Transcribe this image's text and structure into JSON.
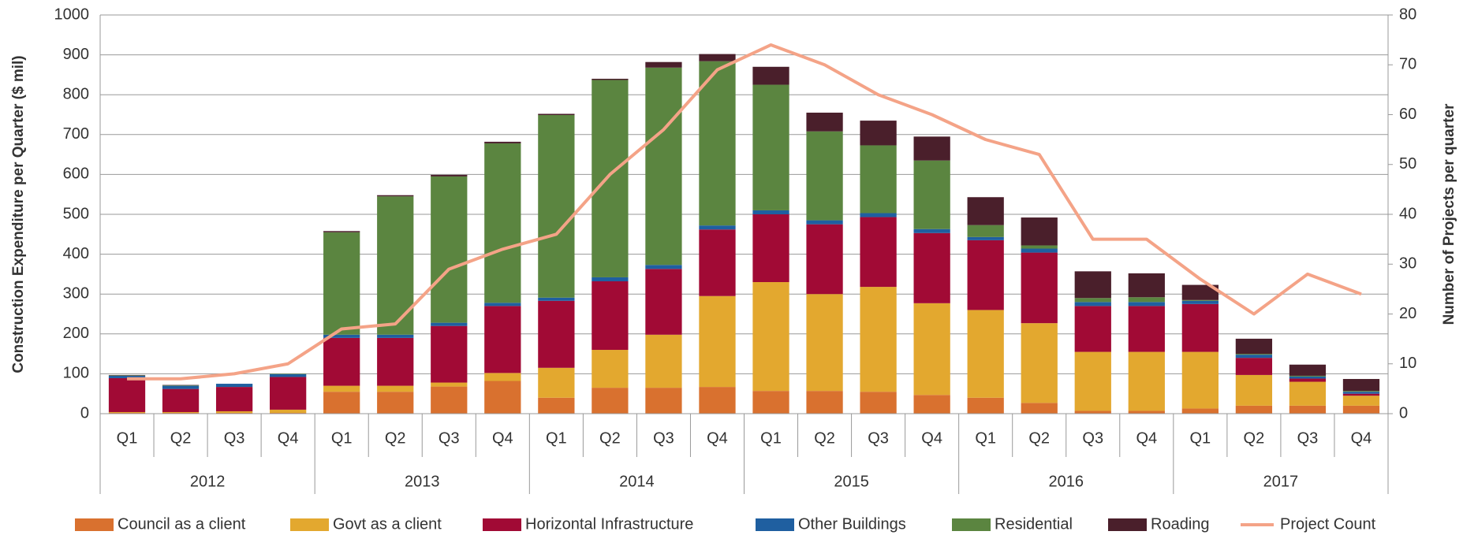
{
  "chart_data": {
    "type": "bar",
    "stacked": true,
    "categories": [
      "Q1",
      "Q2",
      "Q3",
      "Q4",
      "Q1",
      "Q2",
      "Q3",
      "Q4",
      "Q1",
      "Q2",
      "Q3",
      "Q4",
      "Q1",
      "Q2",
      "Q3",
      "Q4",
      "Q1",
      "Q2",
      "Q3",
      "Q4",
      "Q1",
      "Q2",
      "Q3",
      "Q4"
    ],
    "years": [
      "2012",
      "2013",
      "2014",
      "2015",
      "2016",
      "2017"
    ],
    "y_label": "Construction Expenditure per Quarter ($ mil)",
    "y2_label": "Number of Projects per quarter",
    "ylim": [
      0,
      1000
    ],
    "yticks": [
      0,
      100,
      200,
      300,
      400,
      500,
      600,
      700,
      800,
      900,
      1000
    ],
    "y2lim": [
      0,
      80
    ],
    "y2ticks": [
      0,
      10,
      20,
      30,
      40,
      50,
      60,
      70,
      80
    ],
    "grid": true,
    "legend": "bottom",
    "series": [
      {
        "name": "Council as a client",
        "color": "#d9712f",
        "values": [
          2,
          2,
          2,
          2,
          55,
          55,
          68,
          82,
          40,
          65,
          65,
          67,
          57,
          57,
          55,
          47,
          40,
          27,
          7,
          7,
          13,
          20,
          20,
          20
        ]
      },
      {
        "name": "Govt as a client",
        "color": "#e3a82f",
        "values": [
          2,
          2,
          4,
          8,
          15,
          15,
          10,
          20,
          75,
          95,
          133,
          228,
          273,
          243,
          263,
          230,
          220,
          200,
          148,
          148,
          142,
          77,
          60,
          25
        ]
      },
      {
        "name": "Horizontal Infrastructure",
        "color": "#a10a35",
        "values": [
          85,
          58,
          61,
          82,
          120,
          120,
          142,
          168,
          168,
          172,
          165,
          167,
          170,
          175,
          175,
          176,
          175,
          177,
          115,
          115,
          120,
          43,
          8,
          5
        ]
      },
      {
        "name": "Other Buildings",
        "color": "#1f5fa0",
        "values": [
          6,
          8,
          8,
          7,
          8,
          8,
          8,
          8,
          8,
          10,
          10,
          10,
          10,
          10,
          10,
          10,
          8,
          10,
          10,
          10,
          8,
          8,
          5,
          5
        ]
      },
      {
        "name": "Residential",
        "color": "#5b8540",
        "values": [
          1,
          1,
          0,
          1,
          257,
          347,
          367,
          400,
          458,
          495,
          495,
          412,
          315,
          223,
          170,
          172,
          30,
          8,
          10,
          12,
          2,
          2,
          2,
          2
        ]
      },
      {
        "name": "Roading",
        "color": "#4a1f2b",
        "values": [
          1,
          1,
          0,
          0,
          3,
          3,
          4,
          4,
          3,
          3,
          14,
          18,
          45,
          47,
          62,
          60,
          70,
          70,
          67,
          60,
          38,
          38,
          28,
          30
        ]
      },
      {
        "name": "Project Count",
        "color": "#f4a387",
        "type": "line",
        "axis": "y2",
        "values": [
          7,
          7,
          8,
          10,
          17,
          18,
          29,
          33,
          36,
          48,
          57,
          69,
          74,
          70,
          64,
          60,
          55,
          52,
          35,
          35,
          27,
          20,
          28,
          24
        ]
      }
    ]
  }
}
